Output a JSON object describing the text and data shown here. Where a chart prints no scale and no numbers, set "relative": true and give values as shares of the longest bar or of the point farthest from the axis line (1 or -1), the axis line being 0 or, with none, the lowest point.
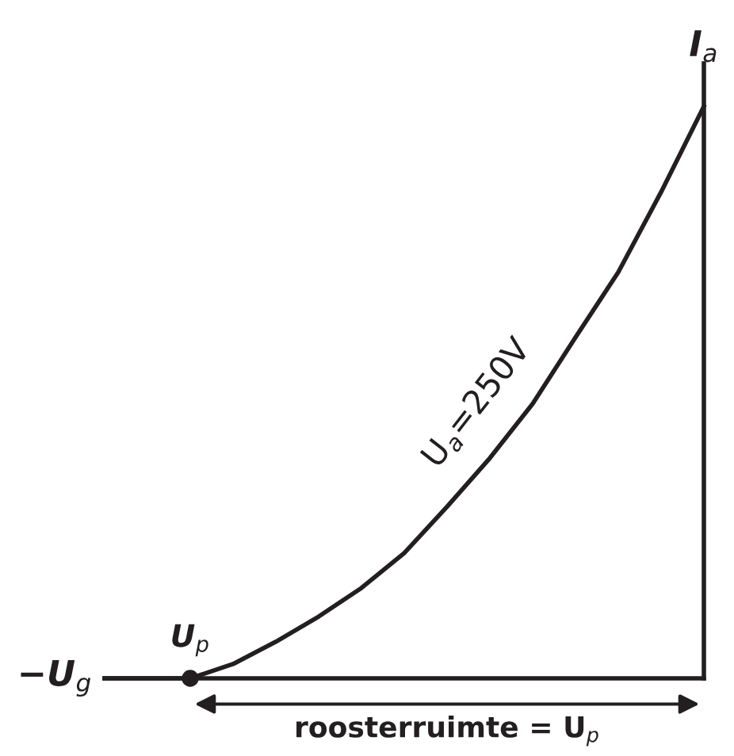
{
  "chart_data": {
    "type": "line",
    "relative": true,
    "xlabel": "−U$_{g}$",
    "ylabel": "I$_{a}$",
    "categories": [
      null,
      null,
      null,
      null,
      null,
      null,
      null,
      null,
      null,
      null,
      null,
      null,
      null,
      null,
      null
    ],
    "series": [
      {
        "name": "U$_{a}$=250V",
        "color": "#231f20",
        "values": [
          0,
          0,
          0,
          0.025,
          0.064,
          0.108,
          0.158,
          0.219,
          0.3,
          0.385,
          0.48,
          0.596,
          0.71,
          0.85,
          1
        ]
      }
    ],
    "annotations": [
      "U$_{p}$",
      "roosterruimte = U$_{p}$"
    ]
  }
}
